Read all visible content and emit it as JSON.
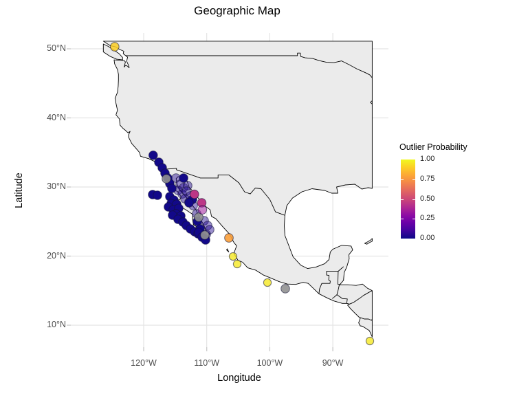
{
  "title": "Geographic Map",
  "axes": {
    "x": {
      "label": "Longitude",
      "ticks": [
        {
          "value": -120,
          "label": "120°W"
        },
        {
          "value": -110,
          "label": "110°W"
        },
        {
          "value": -100,
          "label": "100°W"
        },
        {
          "value": -90,
          "label": "90°W"
        }
      ]
    },
    "y": {
      "label": "Latitude",
      "ticks": [
        {
          "value": 50,
          "label": "50°N"
        },
        {
          "value": 40,
          "label": "40°N"
        },
        {
          "value": 30,
          "label": "30°N"
        },
        {
          "value": 20,
          "label": "20°N"
        },
        {
          "value": 10,
          "label": "10°N"
        }
      ]
    }
  },
  "legend": {
    "title": "Outlier Probability",
    "ticks": [
      {
        "value": 1.0,
        "label": "1.00"
      },
      {
        "value": 0.75,
        "label": "0.75"
      },
      {
        "value": 0.5,
        "label": "0.50"
      },
      {
        "value": 0.25,
        "label": "0.25"
      },
      {
        "value": 0.0,
        "label": "0.00"
      }
    ]
  },
  "colors": {
    "land_fill": "#ebebeb",
    "land_border": "#000000",
    "grid": "#e4e4e4",
    "axis_text": "#4d4d4d",
    "tick_mark": "#c9c9c9",
    "na_point": "#919191",
    "point_stroke": "rgba(20,20,55,0.55)",
    "plasma_stops": [
      [
        0,
        "#0d0887"
      ],
      [
        0.1,
        "#41049d"
      ],
      [
        0.2,
        "#6a00a8"
      ],
      [
        0.3,
        "#8f0da4"
      ],
      [
        0.4,
        "#b12a90"
      ],
      [
        0.5,
        "#cc4778"
      ],
      [
        0.6,
        "#e16462"
      ],
      [
        0.7,
        "#f2844b"
      ],
      [
        0.8,
        "#fca636"
      ],
      [
        0.9,
        "#fcce25"
      ],
      [
        1,
        "#f0f921"
      ]
    ]
  },
  "chart_data": {
    "type": "scatter",
    "title": "Geographic Map",
    "xlabel": "Longitude",
    "ylabel": "Latitude",
    "color_label": "Outlier Probability",
    "colormap": "plasma",
    "color_range": [
      0,
      1
    ],
    "xlim": [
      -131.6,
      -81.2
    ],
    "ylim": [
      6.8,
      52.3
    ],
    "grid": true,
    "legend_position": "right",
    "na_description": "gray points = missing outlier probability",
    "point_groups": [
      {
        "name": "low-probability-faded",
        "p": 0.04,
        "a": 0.45,
        "pts": [
          [
            -114.87,
            31.29
          ],
          [
            -114.22,
            30.4
          ],
          [
            -113.67,
            29.9
          ],
          [
            -113.02,
            30.2
          ],
          [
            -114.55,
            29.5
          ],
          [
            -113.89,
            29.0
          ],
          [
            -113.24,
            29.4
          ],
          [
            -112.58,
            28.71
          ],
          [
            -113.46,
            28.31
          ],
          [
            -112.8,
            27.81
          ],
          [
            -112.15,
            27.31
          ],
          [
            -111.6,
            26.12
          ],
          [
            -110.4,
            25.12
          ],
          [
            -109.86,
            24.43
          ],
          [
            -109.53,
            23.83
          ],
          [
            -110.08,
            23.13
          ]
        ]
      },
      {
        "name": "near-zero-probability",
        "p": 0.01,
        "a": 1,
        "pts": [
          [
            -118.5,
            34.6
          ],
          [
            -117.6,
            33.58
          ],
          [
            -117.06,
            32.79
          ],
          [
            -116.62,
            31.99
          ],
          [
            -116.18,
            31.29
          ],
          [
            -115.86,
            30.5
          ],
          [
            -115.53,
            29.8
          ],
          [
            -113.67,
            31.29
          ],
          [
            -118.58,
            28.91
          ],
          [
            -117.82,
            28.81
          ],
          [
            -115.86,
            28.61
          ],
          [
            -115.2,
            28.11
          ],
          [
            -115.64,
            27.61
          ],
          [
            -114.77,
            27.51
          ],
          [
            -116.07,
            27.11
          ],
          [
            -115.31,
            26.72
          ],
          [
            -114.44,
            26.92
          ],
          [
            -114.87,
            26.12
          ],
          [
            -114.11,
            25.82
          ],
          [
            -115.42,
            25.92
          ],
          [
            -114.55,
            25.32
          ],
          [
            -113.78,
            24.93
          ],
          [
            -113.24,
            24.43
          ],
          [
            -112.58,
            23.93
          ],
          [
            -111.93,
            23.53
          ],
          [
            -111.38,
            23.23
          ],
          [
            -112.26,
            28.21
          ],
          [
            -112.8,
            27.71
          ],
          [
            -111.49,
            25.02
          ],
          [
            -111.06,
            23.93
          ],
          [
            -111.27,
            23.43
          ],
          [
            -110.73,
            22.74
          ],
          [
            -110.19,
            22.34
          ]
        ]
      },
      {
        "name": "missing-probability",
        "p": null,
        "a": 0.9,
        "pts": [
          [
            -116.4,
            31.19
          ],
          [
            -111.27,
            25.62
          ],
          [
            -110.3,
            23.03
          ],
          [
            -97.54,
            15.28
          ]
        ]
      },
      {
        "name": "mid-probability",
        "p": 0.44,
        "a": 1,
        "pts": [
          [
            -111.95,
            28.95
          ],
          [
            -110.8,
            27.71
          ]
        ]
      },
      {
        "name": "mid-probability-faded",
        "p": 0.35,
        "a": 0.55,
        "pts": [
          [
            -110.7,
            26.7
          ]
        ]
      },
      {
        "name": "high-probability-orange",
        "p": 0.78,
        "a": 0.9,
        "pts": [
          [
            -106.48,
            22.64
          ]
        ]
      },
      {
        "name": "very-high-probability",
        "p": 0.96,
        "a": 0.8,
        "r": 5.6,
        "pts": [
          [
            -105.82,
            19.95
          ],
          [
            -105.17,
            18.86
          ],
          [
            -100.37,
            16.17
          ],
          [
            -84.12,
            7.71
          ]
        ]
      },
      {
        "name": "very-high-probability-north",
        "p": 0.9,
        "a": 0.85,
        "pts": [
          [
            -124.6,
            50.3
          ]
        ]
      }
    ]
  },
  "map_shapes": {
    "mainland": [
      [
        -126.4,
        51.1
      ],
      [
        -125.3,
        50.45
      ],
      [
        -124.5,
        50.3
      ],
      [
        -123.8,
        49.9
      ],
      [
        -123.15,
        49.65
      ],
      [
        -123.25,
        49.3
      ],
      [
        -122.85,
        49.0
      ],
      [
        -122.55,
        48.8
      ],
      [
        -122.7,
        48.2
      ],
      [
        -122.4,
        47.6
      ],
      [
        -122.3,
        47.25
      ],
      [
        -122.6,
        47.5
      ],
      [
        -122.85,
        47.65
      ],
      [
        -123.1,
        47.35
      ],
      [
        -122.9,
        48.1
      ],
      [
        -123.1,
        48.3
      ],
      [
        -124.7,
        48.4
      ],
      [
        -124.6,
        47.8
      ],
      [
        -124.15,
        47.0
      ],
      [
        -124.0,
        46.3
      ],
      [
        -124.0,
        45.5
      ],
      [
        -124.05,
        44.6
      ],
      [
        -124.15,
        43.7
      ],
      [
        -124.55,
        42.85
      ],
      [
        -124.4,
        42.1
      ],
      [
        -124.15,
        41.1
      ],
      [
        -124.4,
        40.45
      ],
      [
        -123.85,
        39.85
      ],
      [
        -123.75,
        38.95
      ],
      [
        -123.3,
        38.5
      ],
      [
        -122.95,
        38.25
      ],
      [
        -122.5,
        37.85
      ],
      [
        -122.15,
        38.05
      ],
      [
        -122.4,
        37.55
      ],
      [
        -122.4,
        37.2
      ],
      [
        -121.9,
        36.3
      ],
      [
        -120.65,
        35.0
      ],
      [
        -120.5,
        34.45
      ],
      [
        -119.2,
        34.1
      ],
      [
        -118.4,
        33.75
      ],
      [
        -117.3,
        33.1
      ],
      [
        -117.15,
        32.55
      ],
      [
        -116.65,
        31.85
      ],
      [
        -116.15,
        30.6
      ],
      [
        -115.7,
        29.75
      ],
      [
        -114.65,
        29.35
      ],
      [
        -114.05,
        28.55
      ],
      [
        -114.3,
        28.2
      ],
      [
        -115.05,
        27.85
      ],
      [
        -114.55,
        27.4
      ],
      [
        -113.3,
        26.7
      ],
      [
        -112.15,
        26.0
      ],
      [
        -112.3,
        25.6
      ],
      [
        -112.1,
        24.55
      ],
      [
        -111.0,
        23.85
      ],
      [
        -110.3,
        23.45
      ],
      [
        -109.9,
        22.9
      ],
      [
        -109.45,
        23.2
      ],
      [
        -109.7,
        23.4
      ],
      [
        -110.05,
        23.6
      ],
      [
        -110.3,
        24.15
      ],
      [
        -110.65,
        24.8
      ],
      [
        -111.35,
        26.0
      ],
      [
        -111.7,
        26.7
      ],
      [
        -112.3,
        27.35
      ],
      [
        -113.1,
        28.3
      ],
      [
        -113.6,
        28.9
      ],
      [
        -114.35,
        29.6
      ],
      [
        -114.7,
        30.4
      ],
      [
        -114.85,
        31.2
      ],
      [
        -114.55,
        31.5
      ],
      [
        -113.5,
        31.2
      ],
      [
        -113.1,
        30.8
      ],
      [
        -112.8,
        30.0
      ],
      [
        -112.15,
        29.3
      ],
      [
        -111.85,
        28.9
      ],
      [
        -110.85,
        27.9
      ],
      [
        -110.35,
        27.3
      ],
      [
        -109.45,
        26.7
      ],
      [
        -109.25,
        25.75
      ],
      [
        -108.55,
        25.4
      ],
      [
        -107.5,
        24.3
      ],
      [
        -106.4,
        23.2
      ],
      [
        -105.65,
        21.9
      ],
      [
        -105.25,
        21.5
      ],
      [
        -105.7,
        20.4
      ],
      [
        -105.05,
        19.4
      ],
      [
        -104.3,
        19.1
      ],
      [
        -103.5,
        18.3
      ],
      [
        -102.2,
        17.95
      ],
      [
        -101.0,
        17.25
      ],
      [
        -99.9,
        16.85
      ],
      [
        -98.5,
        16.3
      ],
      [
        -97.2,
        15.95
      ],
      [
        -95.9,
        15.9
      ],
      [
        -94.7,
        16.2
      ],
      [
        -93.9,
        16.05
      ],
      [
        -92.2,
        14.55
      ],
      [
        -90.8,
        13.9
      ],
      [
        -89.8,
        13.5
      ],
      [
        -88.5,
        13.15
      ],
      [
        -87.8,
        13.15
      ],
      [
        -87.35,
        13.05
      ],
      [
        -87.65,
        12.9
      ],
      [
        -87.2,
        12.4
      ],
      [
        -86.5,
        11.75
      ],
      [
        -85.65,
        11.0
      ],
      [
        -85.9,
        10.35
      ],
      [
        -85.65,
        9.9
      ],
      [
        -85.3,
        9.85
      ],
      [
        -84.7,
        9.5
      ],
      [
        -84.2,
        9.2
      ],
      [
        -83.9,
        8.6
      ],
      [
        -83.75,
        8.3
      ],
      [
        -83.75,
        15.0
      ],
      [
        -84.5,
        15.35
      ],
      [
        -85.3,
        15.95
      ],
      [
        -86.3,
        15.75
      ],
      [
        -87.6,
        15.85
      ],
      [
        -88.9,
        15.85
      ],
      [
        -88.3,
        16.5
      ],
      [
        -88.2,
        17.6
      ],
      [
        -87.8,
        18.4
      ],
      [
        -87.4,
        19.6
      ],
      [
        -87.45,
        20.2
      ],
      [
        -86.85,
        20.9
      ],
      [
        -87.1,
        21.45
      ],
      [
        -88.6,
        21.55
      ],
      [
        -90.0,
        21.0
      ],
      [
        -90.4,
        20.6
      ],
      [
        -90.6,
        19.5
      ],
      [
        -91.3,
        18.9
      ],
      [
        -92.7,
        18.4
      ],
      [
        -94.0,
        18.2
      ],
      [
        -95.1,
        18.7
      ],
      [
        -96.3,
        19.9
      ],
      [
        -97.6,
        23.0
      ],
      [
        -97.7,
        24.4
      ],
      [
        -97.6,
        25.9
      ],
      [
        -97.3,
        27.3
      ],
      [
        -96.4,
        28.4
      ],
      [
        -94.9,
        29.3
      ],
      [
        -93.3,
        29.75
      ],
      [
        -91.3,
        29.5
      ],
      [
        -90.2,
        29.1
      ],
      [
        -89.2,
        29.1
      ],
      [
        -89.4,
        30.0
      ],
      [
        -88.0,
        30.3
      ],
      [
        -86.5,
        30.4
      ],
      [
        -85.4,
        29.7
      ],
      [
        -84.4,
        29.9
      ],
      [
        -83.75,
        29.8
      ],
      [
        -83.75,
        51.1
      ]
    ],
    "vancouver_island": [
      [
        -123.35,
        48.4
      ],
      [
        -124.3,
        48.5
      ],
      [
        -125.3,
        48.9
      ],
      [
        -126.4,
        49.55
      ],
      [
        -126.4,
        50.7
      ],
      [
        -125.6,
        50.35
      ],
      [
        -124.7,
        49.8
      ],
      [
        -123.9,
        49.3
      ],
      [
        -123.35,
        48.75
      ]
    ],
    "cuba_west": [
      [
        -84.95,
        21.85
      ],
      [
        -84.5,
        22.05
      ],
      [
        -84.05,
        22.3
      ],
      [
        -83.75,
        22.55
      ],
      [
        -83.75,
        22.15
      ],
      [
        -84.2,
        21.95
      ],
      [
        -84.6,
        21.72
      ]
    ],
    "islas_marias": [
      [
        -106.85,
        20.9
      ],
      [
        -106.5,
        20.6
      ],
      [
        -106.75,
        21.05
      ]
    ],
    "borders": {
      "us_canada": [
        [
          -122.85,
          49.0
        ],
        [
          -95.6,
          49.0
        ],
        [
          -95.6,
          49.38
        ],
        [
          -95.15,
          49.38
        ],
        [
          -95.1,
          48.9
        ],
        [
          -94.4,
          48.7
        ],
        [
          -93.2,
          48.6
        ],
        [
          -92.2,
          48.3
        ],
        [
          -91.0,
          48.05
        ],
        [
          -89.8,
          48.0
        ],
        [
          -88.6,
          48.25
        ],
        [
          -87.4,
          47.7
        ],
        [
          -86.2,
          47.1
        ],
        [
          -85.2,
          46.7
        ],
        [
          -84.6,
          46.45
        ],
        [
          -84.1,
          46.2
        ],
        [
          -83.75,
          45.8
        ]
      ],
      "detroit_notch": [
        [
          -83.75,
          42.5
        ],
        [
          -84.05,
          42.25
        ],
        [
          -83.75,
          42.0
        ]
      ],
      "us_mexico": [
        [
          -117.15,
          32.55
        ],
        [
          -114.8,
          32.7
        ],
        [
          -114.8,
          32.5
        ],
        [
          -111.0,
          31.3
        ],
        [
          -108.2,
          31.3
        ],
        [
          -108.2,
          31.75
        ],
        [
          -106.5,
          31.75
        ],
        [
          -104.9,
          30.6
        ],
        [
          -104.0,
          29.3
        ],
        [
          -103.1,
          29.0
        ],
        [
          -102.3,
          29.85
        ],
        [
          -101.4,
          29.75
        ],
        [
          -100.0,
          28.2
        ],
        [
          -99.1,
          26.4
        ],
        [
          -97.6,
          25.9
        ]
      ],
      "mexico_guatemala": [
        [
          -92.2,
          14.55
        ],
        [
          -92.1,
          15.25
        ],
        [
          -91.75,
          16.05
        ],
        [
          -90.45,
          16.05
        ],
        [
          -90.4,
          16.4
        ],
        [
          -90.65,
          16.55
        ],
        [
          -90.6,
          17.2
        ],
        [
          -90.99,
          17.25
        ],
        [
          -90.99,
          17.8
        ],
        [
          -89.15,
          17.8
        ]
      ],
      "mexico_belize": [
        [
          -89.15,
          17.8
        ],
        [
          -88.3,
          18.48
        ]
      ],
      "guatemala_belize": [
        [
          -89.15,
          17.8
        ],
        [
          -89.2,
          15.9
        ]
      ],
      "guatemala_honduras": [
        [
          -89.2,
          15.9
        ],
        [
          -88.95,
          15.9
        ],
        [
          -89.15,
          15.1
        ],
        [
          -89.35,
          14.42
        ]
      ],
      "guatemala_el_salvador": [
        [
          -90.1,
          13.85
        ],
        [
          -89.8,
          14.05
        ],
        [
          -89.35,
          14.42
        ]
      ],
      "honduras_el_salvador": [
        [
          -89.35,
          14.42
        ],
        [
          -88.5,
          13.85
        ],
        [
          -87.7,
          13.8
        ],
        [
          -87.8,
          13.15
        ]
      ],
      "honduras_nicaragua": [
        [
          -87.35,
          13.05
        ],
        [
          -86.7,
          13.3
        ],
        [
          -85.8,
          13.85
        ],
        [
          -85.15,
          14.3
        ],
        [
          -84.3,
          14.75
        ],
        [
          -83.75,
          15.0
        ]
      ],
      "nicaragua_costa_rica": [
        [
          -85.65,
          11.1
        ],
        [
          -85.0,
          10.9
        ],
        [
          -84.35,
          10.9
        ],
        [
          -83.85,
          10.7
        ],
        [
          -83.75,
          10.9
        ]
      ]
    }
  }
}
